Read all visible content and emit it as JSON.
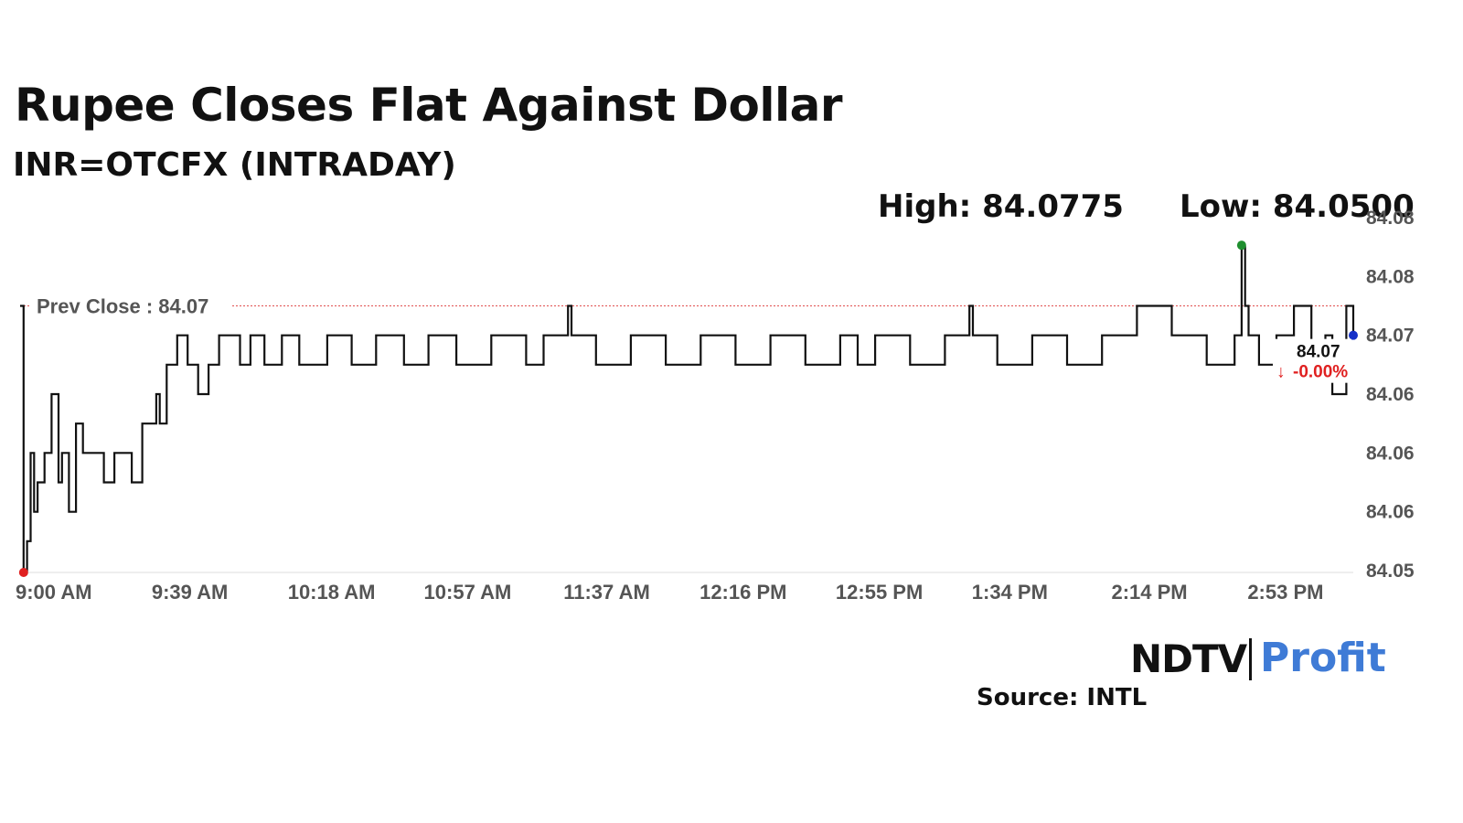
{
  "header": {
    "title": "Rupee Closes Flat Against Dollar",
    "subtitle": "INR=OTCFX (INTRADAY)",
    "high_label": "High: 84.0775",
    "low_label": "Low: 84.0500"
  },
  "footer": {
    "brand_left": "NDTV",
    "brand_right": "Profit",
    "source": "Source: INTL"
  },
  "colors": {
    "line": "#111111",
    "prev_close": "#e05050",
    "high_marker": "#1f8f2f",
    "low_marker": "#e02020",
    "last_marker": "#1530c8",
    "change_down": "#e02020"
  },
  "chart_data": {
    "type": "line",
    "title": "Rupee Closes Flat Against Dollar",
    "subtitle": "INR=OTCFX (INTRADAY)",
    "x_tick_labels": [
      "9:00 AM",
      "9:39 AM",
      "10:18 AM",
      "10:57 AM",
      "11:37 AM",
      "12:16 PM",
      "12:55 PM",
      "1:34 PM",
      "2:14 PM",
      "2:53 PM"
    ],
    "y_tick_labels": [
      "84.08",
      "84.08",
      "84.07",
      "84.06",
      "84.06",
      "84.06",
      "84.05"
    ],
    "ylim": [
      84.05,
      84.08
    ],
    "prev_close": 84.0725,
    "prev_close_label": "Prev Close : 84.07",
    "high": 84.0775,
    "low": 84.05,
    "last_value_label": "84.07",
    "last_change_label": "-0.00%",
    "series": [
      {
        "x": [
          "9:00",
          "9:01",
          "9:02",
          "9:03",
          "9:04",
          "9:05",
          "9:07",
          "9:09",
          "9:11",
          "9:12",
          "9:14",
          "9:16",
          "9:18",
          "9:21",
          "9:24",
          "9:27",
          "9:30",
          "9:32",
          "9:35",
          "9:37",
          "9:39",
          "9:40",
          "9:42",
          "9:44",
          "9:45",
          "9:48",
          "9:51",
          "9:54",
          "9:57",
          "10:00",
          "10:03",
          "10:06",
          "10:10",
          "10:15",
          "10:20",
          "10:28",
          "10:35",
          "10:42",
          "10:50",
          "10:57",
          "11:05",
          "11:15",
          "11:25",
          "11:30",
          "11:35",
          "11:37",
          "11:38",
          "11:45",
          "11:55",
          "12:05",
          "12:15",
          "12:25",
          "12:35",
          "12:45",
          "12:55",
          "13:00",
          "13:05",
          "13:15",
          "13:25",
          "13:32",
          "13:33",
          "13:40",
          "13:50",
          "14:00",
          "14:10",
          "14:20",
          "14:30",
          "14:40",
          "14:48",
          "14:50",
          "14:51",
          "14:52",
          "14:55",
          "15:00",
          "15:05",
          "15:10",
          "15:14",
          "15:16",
          "15:20",
          "15:22"
        ],
        "values": [
          84.0725,
          84.05,
          84.0525,
          84.06,
          84.055,
          84.0575,
          84.06,
          84.065,
          84.0575,
          84.06,
          84.055,
          84.0625,
          84.06,
          84.06,
          84.0575,
          84.06,
          84.06,
          84.0575,
          84.0625,
          84.0625,
          84.065,
          84.0625,
          84.0675,
          84.0675,
          84.07,
          84.0675,
          84.065,
          84.0675,
          84.07,
          84.07,
          84.0675,
          84.07,
          84.0675,
          84.07,
          84.0675,
          84.07,
          84.0675,
          84.07,
          84.0675,
          84.07,
          84.0675,
          84.07,
          84.0675,
          84.07,
          84.07,
          84.0725,
          84.07,
          84.0675,
          84.07,
          84.0675,
          84.07,
          84.0675,
          84.07,
          84.0675,
          84.07,
          84.0675,
          84.07,
          84.0675,
          84.07,
          84.0725,
          84.07,
          84.0675,
          84.07,
          84.0675,
          84.07,
          84.0725,
          84.07,
          84.0675,
          84.07,
          84.0775,
          84.0725,
          84.07,
          84.0675,
          84.07,
          84.0725,
          84.0675,
          84.07,
          84.065,
          84.0725,
          84.07
        ]
      }
    ],
    "grid": false,
    "legend": "none"
  }
}
